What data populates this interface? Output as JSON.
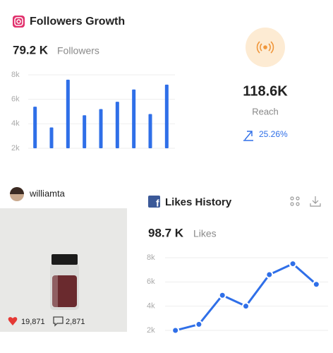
{
  "followers_card": {
    "title": "Followers Growth",
    "count": "79.2 K",
    "count_label": "Followers"
  },
  "reach_card": {
    "value": "118.6K",
    "label": "Reach",
    "change": "25.26%"
  },
  "post_card": {
    "username": "williamta",
    "likes": "19,871",
    "comments": "2,871"
  },
  "likes_card": {
    "title": "Likes History",
    "count": "98.7 K",
    "count_label": "Likes"
  },
  "chart_data": [
    {
      "type": "bar",
      "categories": [
        null,
        null,
        null,
        null,
        null,
        null,
        null,
        null,
        null
      ],
      "values": [
        5400,
        3700,
        7600,
        4700,
        5200,
        5800,
        6800,
        4800,
        7200
      ],
      "color": "#2f6fe8",
      "ylim": [
        2000,
        8000
      ],
      "yticks": [
        {
          "value": 2000,
          "label": "2k"
        },
        {
          "value": 4000,
          "label": "4k"
        },
        {
          "value": 6000,
          "label": "6k"
        },
        {
          "value": 8000,
          "label": "8k"
        }
      ],
      "grid": true
    },
    {
      "type": "line",
      "categories": [
        null,
        null,
        null,
        null,
        null,
        null,
        null
      ],
      "values": [
        2000,
        2500,
        4900,
        4000,
        6600,
        7500,
        5800
      ],
      "color": "#2f6fe8",
      "ylim": [
        2000,
        8000
      ],
      "yticks": [
        {
          "value": 2000,
          "label": "2k"
        },
        {
          "value": 4000,
          "label": "4k"
        },
        {
          "value": 6000,
          "label": "6k"
        },
        {
          "value": 8000,
          "label": "8k"
        }
      ],
      "grid": true
    }
  ]
}
